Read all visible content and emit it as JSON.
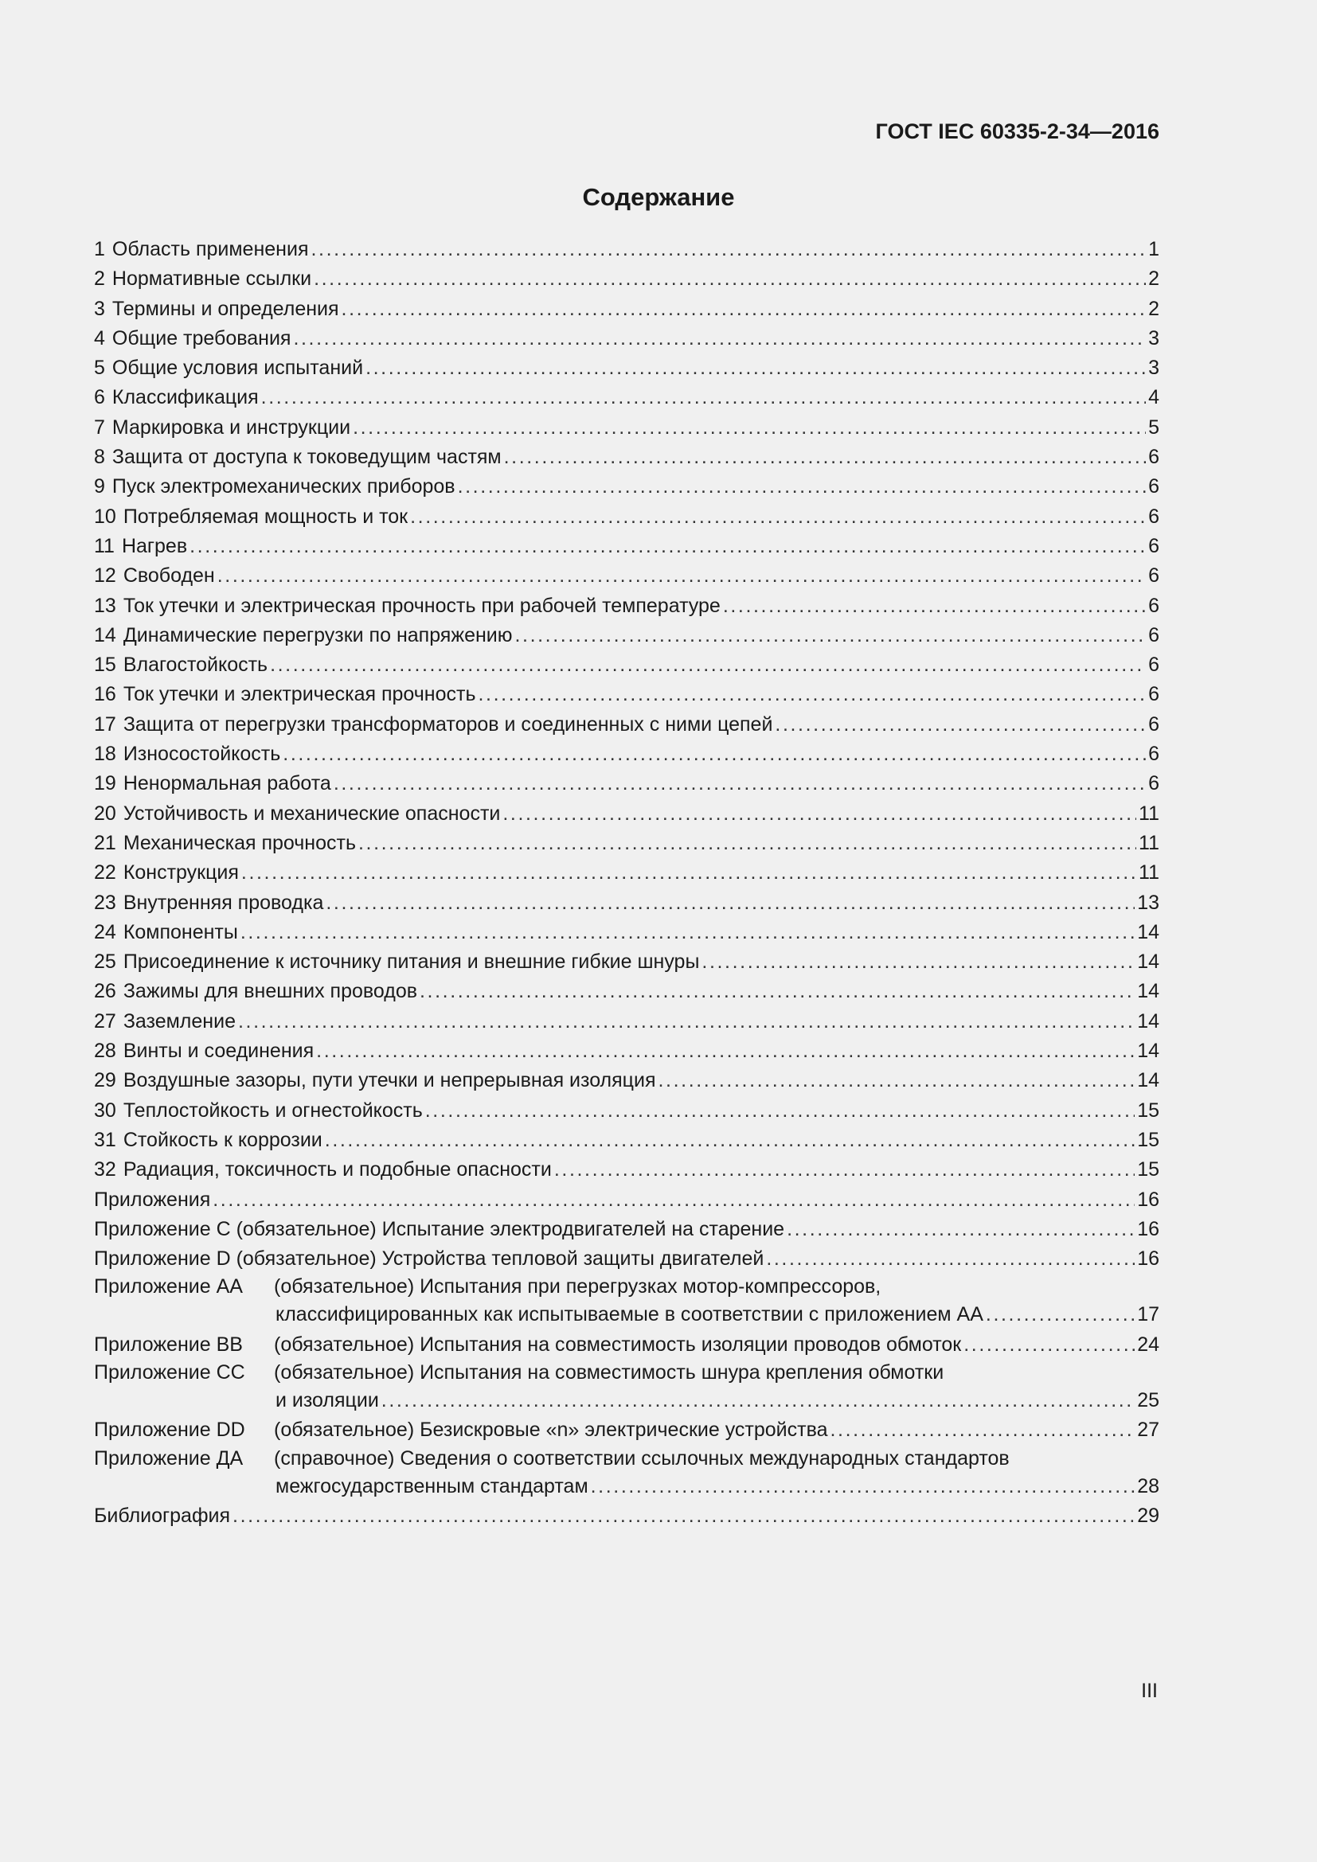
{
  "header": {
    "doc_code": "ГОСТ IEC 60335-2-34—2016"
  },
  "title": "Содержание",
  "entries": [
    {
      "num": "1",
      "title": "Область применения",
      "page": "1"
    },
    {
      "num": "2",
      "title": "Нормативные ссылки",
      "page": "2"
    },
    {
      "num": "3",
      "title": "Термины и определения",
      "page": "2"
    },
    {
      "num": "4",
      "title": "Общие требования",
      "page": "3"
    },
    {
      "num": "5",
      "title": "Общие условия испытаний",
      "page": "3"
    },
    {
      "num": "6",
      "title": "Классификация",
      "page": "4"
    },
    {
      "num": "7",
      "title": "Маркировка и инструкции",
      "page": "5"
    },
    {
      "num": "8",
      "title": "Защита от доступа к токоведущим частям",
      "page": "6"
    },
    {
      "num": "9",
      "title": "Пуск электромеханических приборов",
      "page": "6"
    },
    {
      "num": "10",
      "title": "Потребляемая мощность и ток",
      "page": "6"
    },
    {
      "num": "11",
      "title": "Нагрев",
      "page": "6"
    },
    {
      "num": "12",
      "title": "Свободен",
      "page": "6"
    },
    {
      "num": "13",
      "title": "Ток утечки и электрическая прочность при рабочей температуре",
      "page": "6"
    },
    {
      "num": "14",
      "title": "Динамические перегрузки по напряжению",
      "page": "6"
    },
    {
      "num": "15",
      "title": "Влагостойкость",
      "page": "6"
    },
    {
      "num": "16",
      "title": "Ток утечки и электрическая прочность",
      "page": "6"
    },
    {
      "num": "17",
      "title": "Защита от перегрузки трансформаторов и соединенных с ними цепей",
      "page": "6"
    },
    {
      "num": "18",
      "title": "Износостойкость",
      "page": "6"
    },
    {
      "num": "19",
      "title": "Ненормальная работа",
      "page": "6"
    },
    {
      "num": "20",
      "title": "Устойчивость и механические опасности",
      "page": "11"
    },
    {
      "num": "21",
      "title": "Механическая прочность",
      "page": "11"
    },
    {
      "num": "22",
      "title": "Конструкция",
      "page": "11"
    },
    {
      "num": "23",
      "title": "Внутренняя проводка",
      "page": "13"
    },
    {
      "num": "24",
      "title": "Компоненты",
      "page": "14"
    },
    {
      "num": "25",
      "title": "Присоединение к источнику питания и внешние гибкие шнуры",
      "page": "14"
    },
    {
      "num": "26",
      "title": "Зажимы для внешних проводов",
      "page": "14"
    },
    {
      "num": "27",
      "title": "Заземление",
      "page": "14"
    },
    {
      "num": "28",
      "title": "Винты и соединения",
      "page": "14"
    },
    {
      "num": "29",
      "title": "Воздушные зазоры, пути утечки и непрерывная изоляция",
      "page": "14"
    },
    {
      "num": "30",
      "title": "Теплостойкость и огнестойкость",
      "page": "15"
    },
    {
      "num": "31",
      "title": "Стойкость к коррозии",
      "page": "15"
    },
    {
      "num": "32",
      "title": "Радиация, токсичность и подобные опасности",
      "page": "15"
    }
  ],
  "appendices_heading": {
    "title": "Приложения",
    "page": "16"
  },
  "appendices_single": [
    {
      "title": "Приложение  С (обязательное) Испытание электродвигателей на старение",
      "page": "16"
    },
    {
      "title": "Приложение  D (обязательное) Устройства тепловой защиты двигателей",
      "page": "16"
    }
  ],
  "appendices": [
    {
      "prefix": "Приложение  АА",
      "line1": "(обязательное) Испытания при перегрузках мотор-компрессоров,",
      "line2": "классифицированных как испытываемые в соответствии с приложением АА",
      "page": "17"
    },
    {
      "prefix": "Приложение  ВВ",
      "line1": "",
      "line2": "(обязательное) Испытания на совместимость изоляции проводов обмоток",
      "page": "24"
    },
    {
      "prefix": "Приложение  СС",
      "line1": "(обязательное) Испытания на совместимость шнура крепления обмотки",
      "line2": "и изоляции",
      "page": "25"
    },
    {
      "prefix": "Приложение  DD",
      "line1": "",
      "line2": "(обязательное) Безискровые «n» электрические устройства",
      "page": "27"
    },
    {
      "prefix": "Приложение  ДА",
      "line1": "(справочное) Сведения о соответствии ссылочных международных стандартов",
      "line2": "межгосударственным стандартам",
      "page": "28"
    }
  ],
  "bibliography": {
    "title": "Библиография",
    "page": "29"
  },
  "page_number": "III"
}
